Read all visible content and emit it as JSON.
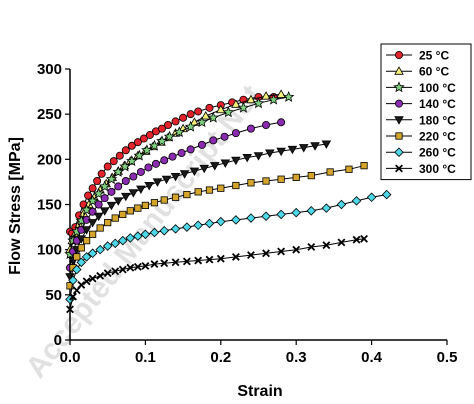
{
  "watermark": "Accepted Manuscript Not",
  "chart_data": {
    "type": "line",
    "xlabel": "Strain",
    "ylabel": "Flow Stress [MPa]",
    "xlim": [
      0,
      0.5
    ],
    "ylim": [
      0,
      300
    ],
    "xticks": [
      "0.0",
      "0.1",
      "0.2",
      "0.3",
      "0.4",
      "0.5"
    ],
    "yticks": [
      "0",
      "50",
      "100",
      "150",
      "200",
      "250",
      "300"
    ],
    "grid": false,
    "legend_position": "top-right",
    "series": [
      {
        "name": "25 °C",
        "marker": "circle",
        "color": "#e3232b",
        "x": [
          0.0,
          0.003,
          0.007,
          0.012,
          0.018,
          0.024,
          0.03,
          0.036,
          0.042,
          0.05,
          0.058,
          0.066,
          0.074,
          0.082,
          0.09,
          0.098,
          0.106,
          0.114,
          0.122,
          0.13,
          0.14,
          0.15,
          0.16,
          0.17,
          0.185,
          0.2,
          0.215,
          0.23,
          0.25,
          0.27
        ],
        "y": [
          120,
          118,
          125,
          138,
          150,
          160,
          168,
          176,
          184,
          192,
          198,
          204,
          210,
          215,
          219,
          223,
          227,
          231,
          234,
          238,
          242,
          246,
          250,
          253,
          257,
          260,
          263,
          266,
          269,
          269
        ]
      },
      {
        "name": "60 °C",
        "marker": "triangle-up",
        "color": "#f5f07a",
        "x": [
          0.0,
          0.003,
          0.007,
          0.012,
          0.018,
          0.025,
          0.032,
          0.04,
          0.048,
          0.056,
          0.064,
          0.072,
          0.08,
          0.09,
          0.1,
          0.11,
          0.12,
          0.13,
          0.14,
          0.15,
          0.165,
          0.18,
          0.2,
          0.22,
          0.24,
          0.26,
          0.28
        ],
        "y": [
          100,
          110,
          118,
          128,
          140,
          150,
          158,
          166,
          173,
          180,
          187,
          193,
          198,
          204,
          209,
          214,
          219,
          224,
          229,
          234,
          241,
          248,
          255,
          261,
          266,
          270,
          272
        ]
      },
      {
        "name": "100 °C",
        "marker": "star",
        "color": "#7fd17f",
        "x": [
          0.0,
          0.004,
          0.009,
          0.015,
          0.022,
          0.03,
          0.038,
          0.046,
          0.055,
          0.064,
          0.073,
          0.082,
          0.092,
          0.102,
          0.112,
          0.122,
          0.132,
          0.145,
          0.16,
          0.175,
          0.19,
          0.21,
          0.23,
          0.25,
          0.27,
          0.29
        ],
        "y": [
          95,
          110,
          120,
          132,
          144,
          154,
          162,
          170,
          178,
          186,
          192,
          198,
          204,
          210,
          215,
          220,
          225,
          230,
          236,
          241,
          246,
          252,
          257,
          262,
          266,
          269
        ]
      },
      {
        "name": "140 °C",
        "marker": "circle",
        "color": "#8a2bb0",
        "x": [
          0.0,
          0.004,
          0.009,
          0.015,
          0.022,
          0.03,
          0.038,
          0.046,
          0.055,
          0.064,
          0.074,
          0.084,
          0.094,
          0.104,
          0.114,
          0.125,
          0.136,
          0.148,
          0.16,
          0.175,
          0.19,
          0.205,
          0.22,
          0.24,
          0.26,
          0.28
        ],
        "y": [
          80,
          98,
          110,
          122,
          133,
          142,
          150,
          157,
          164,
          170,
          176,
          181,
          186,
          191,
          195,
          199,
          203,
          207,
          211,
          216,
          221,
          225,
          229,
          234,
          238,
          241
        ]
      },
      {
        "name": "180 °C",
        "marker": "triangle-down",
        "color": "#1a1a1a",
        "x": [
          0.0,
          0.004,
          0.009,
          0.015,
          0.022,
          0.03,
          0.038,
          0.046,
          0.055,
          0.064,
          0.074,
          0.084,
          0.094,
          0.105,
          0.116,
          0.128,
          0.14,
          0.152,
          0.165,
          0.178,
          0.192,
          0.206,
          0.22,
          0.235,
          0.25,
          0.265,
          0.28,
          0.295,
          0.31,
          0.325,
          0.34
        ],
        "y": [
          70,
          88,
          100,
          112,
          122,
          130,
          137,
          143,
          149,
          154,
          159,
          163,
          167,
          171,
          175,
          178,
          181,
          184,
          187,
          190,
          193,
          196,
          199,
          202,
          204,
          207,
          209,
          211,
          213,
          215,
          217
        ]
      },
      {
        "name": "220 °C",
        "marker": "square",
        "color": "#d4a52a",
        "x": [
          0.0,
          0.004,
          0.009,
          0.015,
          0.022,
          0.03,
          0.04,
          0.05,
          0.06,
          0.07,
          0.08,
          0.09,
          0.1,
          0.112,
          0.125,
          0.14,
          0.155,
          0.17,
          0.185,
          0.2,
          0.22,
          0.24,
          0.26,
          0.28,
          0.3,
          0.32,
          0.345,
          0.37,
          0.39
        ],
        "y": [
          60,
          80,
          92,
          102,
          110,
          117,
          124,
          130,
          135,
          139,
          143,
          146,
          149,
          152,
          155,
          158,
          161,
          164,
          166,
          168,
          171,
          174,
          176,
          178,
          180,
          182,
          186,
          189,
          193
        ]
      },
      {
        "name": "260 °C",
        "marker": "diamond",
        "color": "#4dd8e8",
        "x": [
          0.0,
          0.004,
          0.009,
          0.015,
          0.022,
          0.03,
          0.04,
          0.05,
          0.06,
          0.07,
          0.08,
          0.09,
          0.1,
          0.112,
          0.125,
          0.14,
          0.155,
          0.17,
          0.185,
          0.2,
          0.22,
          0.24,
          0.26,
          0.28,
          0.3,
          0.32,
          0.34,
          0.36,
          0.38,
          0.4,
          0.42
        ],
        "y": [
          45,
          66,
          78,
          86,
          92,
          96,
          100,
          104,
          107,
          110,
          113,
          115,
          117,
          119,
          121,
          123,
          125,
          127,
          129,
          131,
          133,
          135,
          137,
          139,
          141,
          143,
          146,
          150,
          154,
          158,
          161
        ]
      },
      {
        "name": "300 °C",
        "marker": "x",
        "color": "#1a1a1a",
        "x": [
          0.0,
          0.004,
          0.009,
          0.015,
          0.022,
          0.03,
          0.04,
          0.05,
          0.06,
          0.07,
          0.08,
          0.09,
          0.1,
          0.112,
          0.125,
          0.14,
          0.155,
          0.17,
          0.185,
          0.2,
          0.22,
          0.24,
          0.26,
          0.28,
          0.3,
          0.32,
          0.34,
          0.36,
          0.38,
          0.39
        ],
        "y": [
          34,
          48,
          55,
          61,
          65,
          68,
          71,
          74,
          76,
          78,
          80,
          81,
          82,
          84,
          85,
          86,
          87,
          88,
          89,
          90,
          92,
          94,
          96,
          98,
          100,
          103,
          105,
          108,
          111,
          112
        ]
      }
    ]
  }
}
